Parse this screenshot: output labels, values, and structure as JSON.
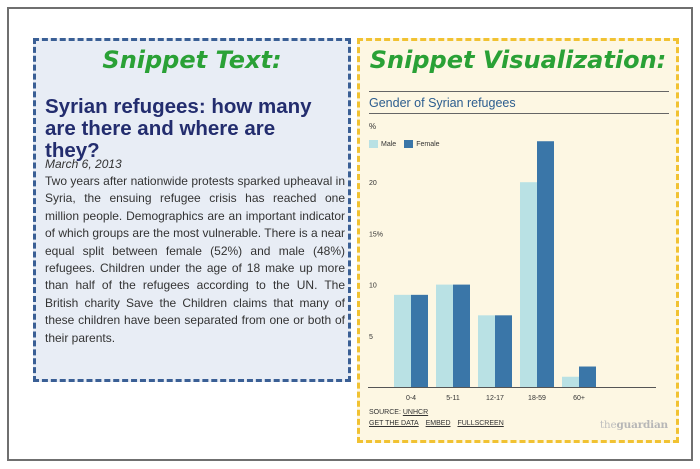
{
  "text_panel": {
    "heading": "Snippet Text:",
    "article_title": "Syrian refugees: how many are there and where are they?",
    "date": "March 6, 2013",
    "body": "Two years after nationwide protests sparked upheaval in Syria, the ensuing refugee crisis has reached one million people. Demographics are an important indicator of which groups are the most vulnerable. There is a near equal split between female (52%) and male (48%) refugees. Children under the age of 18 make up more than half of the refugees according to the UN. The British charity Save the Children claims that many of these children have been separated from one or both of their parents."
  },
  "viz_panel": {
    "heading": "Snippet Visualization:",
    "footer": {
      "source_label": "SOURCE: ",
      "source_link": "UNHCR",
      "links": [
        "GET THE DATA",
        "EMBED",
        "FULLSCREEN"
      ]
    },
    "brand": {
      "prefix": "the",
      "name": "guardian"
    }
  },
  "colors": {
    "male": "#b9e1e4",
    "female": "#3a76a8",
    "heading_green": "#2aa136",
    "text_border": "#3a5f95",
    "viz_border": "#f1c232"
  },
  "chart_data": {
    "type": "bar",
    "title": "Gender of Syrian refugees",
    "ylabel": "%",
    "categories": [
      "0-4",
      "5-11",
      "12-17",
      "18-59",
      "60+"
    ],
    "series": [
      {
        "name": "Male",
        "values": [
          9,
          10,
          7,
          20,
          1
        ]
      },
      {
        "name": "Female",
        "values": [
          9,
          10,
          7,
          24,
          2
        ]
      }
    ],
    "y_ticks": [
      "5",
      "10",
      "15%",
      "20"
    ],
    "y_tick_values": [
      5,
      10,
      15,
      20
    ],
    "ylim": [
      0,
      25
    ],
    "legend": "top-left",
    "grid": false
  }
}
